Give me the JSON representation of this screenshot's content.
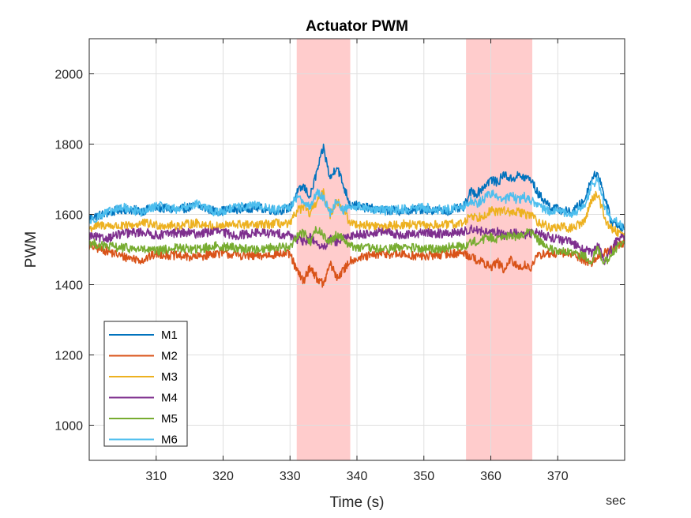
{
  "chart_data": {
    "type": "line",
    "title": "Actuator PWM",
    "xlabel": "Time (s)",
    "ylabel": "PWM",
    "x_unit_label": "sec",
    "xlim": [
      300,
      380
    ],
    "ylim": [
      900,
      2100
    ],
    "xticks": [
      310,
      320,
      330,
      340,
      350,
      360,
      370
    ],
    "yticks": [
      1000,
      1200,
      1400,
      1600,
      1800,
      2000
    ],
    "grid": true,
    "legend_position": "bottom-left",
    "highlight_bands": [
      {
        "x0": 331,
        "x1": 339,
        "color": "#ffcccc"
      },
      {
        "x0": 356.3,
        "x1": 366.2,
        "color": "#ffcccc"
      }
    ],
    "series": [
      {
        "name": "M1",
        "color": "#0072bd",
        "x": [
          300,
          302,
          305,
          308,
          310,
          313,
          316,
          319,
          322,
          325,
          328,
          330,
          331,
          332,
          333,
          334,
          335,
          336,
          337,
          338,
          339,
          341,
          344,
          347,
          350,
          353,
          356,
          357,
          358,
          359,
          360,
          361,
          362,
          363,
          364,
          365,
          366,
          367,
          368,
          369,
          370,
          372,
          374,
          375,
          376,
          377,
          378,
          379,
          380
        ],
        "y": [
          1590,
          1600,
          1615,
          1610,
          1620,
          1612,
          1625,
          1608,
          1615,
          1620,
          1610,
          1618,
          1660,
          1680,
          1650,
          1720,
          1790,
          1700,
          1740,
          1680,
          1630,
          1620,
          1612,
          1610,
          1615,
          1608,
          1620,
          1665,
          1660,
          1680,
          1700,
          1690,
          1715,
          1700,
          1710,
          1705,
          1700,
          1660,
          1640,
          1620,
          1615,
          1605,
          1640,
          1700,
          1720,
          1650,
          1580,
          1570,
          1560
        ]
      },
      {
        "name": "M2",
        "color": "#d95319",
        "x": [
          300,
          302,
          305,
          308,
          310,
          313,
          316,
          319,
          322,
          325,
          328,
          330,
          331,
          332,
          333,
          334,
          335,
          336,
          337,
          338,
          339,
          341,
          344,
          347,
          350,
          353,
          356,
          357,
          358,
          359,
          360,
          361,
          362,
          363,
          364,
          365,
          366,
          367,
          368,
          369,
          370,
          372,
          374,
          375,
          376,
          377,
          378,
          379,
          380
        ],
        "y": [
          1510,
          1500,
          1480,
          1470,
          1488,
          1482,
          1478,
          1490,
          1485,
          1480,
          1488,
          1486,
          1440,
          1410,
          1450,
          1420,
          1400,
          1460,
          1420,
          1440,
          1470,
          1478,
          1488,
          1485,
          1480,
          1487,
          1490,
          1480,
          1470,
          1460,
          1450,
          1465,
          1440,
          1470,
          1450,
          1455,
          1450,
          1480,
          1490,
          1485,
          1488,
          1490,
          1470,
          1460,
          1480,
          1490,
          1500,
          1510,
          1520
        ]
      },
      {
        "name": "M3",
        "color": "#edb120",
        "x": [
          300,
          302,
          305,
          308,
          310,
          313,
          316,
          319,
          322,
          325,
          328,
          330,
          331,
          332,
          333,
          334,
          335,
          336,
          337,
          338,
          339,
          341,
          344,
          347,
          350,
          353,
          356,
          357,
          358,
          359,
          360,
          361,
          362,
          363,
          364,
          365,
          366,
          367,
          368,
          369,
          370,
          372,
          374,
          375,
          376,
          377,
          378,
          379,
          380
        ],
        "y": [
          1560,
          1570,
          1565,
          1575,
          1570,
          1568,
          1575,
          1565,
          1572,
          1568,
          1575,
          1570,
          1610,
          1620,
          1600,
          1640,
          1660,
          1600,
          1640,
          1610,
          1575,
          1570,
          1565,
          1572,
          1568,
          1570,
          1575,
          1600,
          1590,
          1600,
          1610,
          1605,
          1615,
          1600,
          1610,
          1600,
          1600,
          1580,
          1570,
          1560,
          1565,
          1560,
          1580,
          1640,
          1660,
          1590,
          1560,
          1550,
          1545
        ]
      },
      {
        "name": "M4",
        "color": "#7e2f8e",
        "x": [
          300,
          302,
          305,
          308,
          310,
          313,
          316,
          319,
          322,
          325,
          328,
          330,
          331,
          332,
          333,
          334,
          335,
          336,
          337,
          338,
          339,
          341,
          344,
          347,
          350,
          353,
          356,
          357,
          358,
          359,
          360,
          361,
          362,
          363,
          364,
          365,
          366,
          367,
          368,
          369,
          370,
          372,
          374,
          375,
          376,
          377,
          378,
          379,
          380
        ],
        "y": [
          1540,
          1530,
          1545,
          1550,
          1540,
          1548,
          1545,
          1552,
          1540,
          1548,
          1545,
          1542,
          1530,
          1520,
          1535,
          1520,
          1500,
          1530,
          1520,
          1530,
          1540,
          1545,
          1550,
          1540,
          1548,
          1545,
          1550,
          1560,
          1555,
          1550,
          1545,
          1550,
          1540,
          1548,
          1545,
          1540,
          1545,
          1548,
          1540,
          1535,
          1530,
          1520,
          1500,
          1490,
          1510,
          1470,
          1500,
          1530,
          1540
        ]
      },
      {
        "name": "M5",
        "color": "#77ac30",
        "x": [
          300,
          302,
          305,
          308,
          310,
          313,
          316,
          319,
          322,
          325,
          328,
          330,
          331,
          332,
          333,
          334,
          335,
          336,
          337,
          338,
          339,
          341,
          344,
          347,
          350,
          353,
          356,
          357,
          358,
          359,
          360,
          361,
          362,
          363,
          364,
          365,
          366,
          367,
          368,
          369,
          370,
          372,
          374,
          375,
          376,
          377,
          378,
          379,
          380
        ],
        "y": [
          1520,
          1510,
          1505,
          1500,
          1495,
          1505,
          1500,
          1510,
          1505,
          1500,
          1508,
          1505,
          1540,
          1550,
          1520,
          1560,
          1540,
          1520,
          1545,
          1530,
          1510,
          1505,
          1500,
          1508,
          1500,
          1505,
          1510,
          1520,
          1525,
          1530,
          1535,
          1530,
          1545,
          1535,
          1540,
          1545,
          1550,
          1530,
          1510,
          1500,
          1495,
          1490,
          1480,
          1470,
          1500,
          1460,
          1490,
          1510,
          1515
        ]
      },
      {
        "name": "M6",
        "color": "#4dbeee",
        "x": [
          300,
          302,
          305,
          308,
          310,
          313,
          316,
          319,
          322,
          325,
          328,
          330,
          331,
          332,
          333,
          334,
          335,
          336,
          337,
          338,
          339,
          341,
          344,
          347,
          350,
          353,
          356,
          357,
          358,
          359,
          360,
          361,
          362,
          363,
          364,
          365,
          366,
          367,
          368,
          369,
          370,
          372,
          374,
          375,
          376,
          377,
          378,
          379,
          380
        ],
        "y": [
          1580,
          1600,
          1620,
          1605,
          1625,
          1615,
          1630,
          1605,
          1620,
          1625,
          1612,
          1620,
          1650,
          1640,
          1620,
          1660,
          1650,
          1600,
          1640,
          1610,
          1625,
          1620,
          1610,
          1615,
          1620,
          1612,
          1625,
          1640,
          1630,
          1645,
          1660,
          1650,
          1640,
          1655,
          1640,
          1650,
          1640,
          1630,
          1615,
          1605,
          1610,
          1600,
          1620,
          1680,
          1700,
          1620,
          1590,
          1575,
          1565
        ]
      }
    ]
  }
}
